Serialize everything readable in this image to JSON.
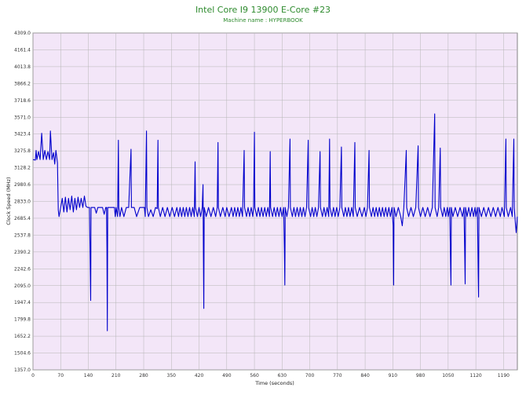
{
  "chart_data": {
    "type": "line",
    "title": "Intel Core I9 13900 E-Core #23",
    "subtitle": "Machine name : HYPERBOOK",
    "xlabel": "Time (seconds)",
    "ylabel": "Clock Speed (MHz)",
    "xlim": [
      0,
      1225
    ],
    "ylim": [
      1357.0,
      4309.0
    ],
    "xticks": [
      0,
      70,
      140,
      210,
      280,
      350,
      420,
      490,
      560,
      630,
      700,
      770,
      840,
      910,
      980,
      1050,
      1120,
      1190
    ],
    "yticks": [
      1357.0,
      1504.6,
      1652.2,
      1799.8,
      1947.4,
      2095.0,
      2242.6,
      2390.2,
      2537.8,
      2685.4,
      2833.0,
      2980.6,
      3128.2,
      3275.8,
      3423.4,
      3571.0,
      3718.6,
      3866.2,
      4013.8,
      4161.4,
      4309.0
    ],
    "ytick_labels": [
      "1357.0",
      "1504.6",
      "1652.2",
      "1799.8",
      "1947.4",
      "2095.0",
      "2242.6",
      "2390.2",
      "2537.8",
      "2685.4",
      "2833.0",
      "2980.6",
      "3128.2",
      "3275.8",
      "3423.4",
      "3571.0",
      "3718.6",
      "3866.2",
      "4013.8",
      "4161.4",
      "4309.0"
    ],
    "grid": true,
    "colors": {
      "line": "#0000cc",
      "plot_bg": "#f3e6f8",
      "grid": "#b5b5b5",
      "title": "#2e8b2e"
    },
    "series": [
      {
        "values": [
          [
            0,
            3200
          ],
          [
            6,
            3195
          ],
          [
            8,
            3280
          ],
          [
            10,
            3200
          ],
          [
            14,
            3270
          ],
          [
            18,
            3200
          ],
          [
            22,
            3430
          ],
          [
            26,
            3200
          ],
          [
            30,
            3280
          ],
          [
            34,
            3200
          ],
          [
            38,
            3270
          ],
          [
            42,
            3200
          ],
          [
            44,
            3450
          ],
          [
            48,
            3200
          ],
          [
            52,
            3260
          ],
          [
            55,
            3160
          ],
          [
            58,
            3280
          ],
          [
            62,
            3170
          ],
          [
            64,
            2760
          ],
          [
            66,
            2700
          ],
          [
            70,
            2780
          ],
          [
            74,
            2860
          ],
          [
            78,
            2740
          ],
          [
            82,
            2870
          ],
          [
            86,
            2740
          ],
          [
            90,
            2860
          ],
          [
            94,
            2760
          ],
          [
            98,
            2880
          ],
          [
            102,
            2740
          ],
          [
            106,
            2860
          ],
          [
            110,
            2760
          ],
          [
            114,
            2870
          ],
          [
            118,
            2780
          ],
          [
            122,
            2860
          ],
          [
            126,
            2780
          ],
          [
            130,
            2880
          ],
          [
            134,
            2790
          ],
          [
            138,
            2780
          ],
          [
            140,
            2780
          ],
          [
            143,
            2780
          ],
          [
            145,
            2230
          ],
          [
            146,
            1965
          ],
          [
            147,
            2780
          ],
          [
            152,
            2780
          ],
          [
            156,
            2780
          ],
          [
            160,
            2730
          ],
          [
            164,
            2780
          ],
          [
            170,
            2780
          ],
          [
            176,
            2780
          ],
          [
            180,
            2720
          ],
          [
            184,
            2780
          ],
          [
            186,
            2780
          ],
          [
            187,
            2420
          ],
          [
            188,
            1700
          ],
          [
            189,
            2780
          ],
          [
            196,
            2780
          ],
          [
            206,
            2780
          ],
          [
            208,
            2700
          ],
          [
            210,
            2780
          ],
          [
            214,
            2700
          ],
          [
            216,
            3370
          ],
          [
            217,
            2780
          ],
          [
            220,
            2700
          ],
          [
            224,
            2780
          ],
          [
            230,
            2700
          ],
          [
            236,
            2780
          ],
          [
            242,
            2780
          ],
          [
            248,
            3290
          ],
          [
            249,
            2780
          ],
          [
            256,
            2780
          ],
          [
            262,
            2700
          ],
          [
            270,
            2780
          ],
          [
            276,
            2780
          ],
          [
            282,
            2780
          ],
          [
            284,
            2700
          ],
          [
            287,
            3450
          ],
          [
            288,
            2780
          ],
          [
            292,
            2700
          ],
          [
            298,
            2760
          ],
          [
            304,
            2700
          ],
          [
            310,
            2780
          ],
          [
            314,
            2770
          ],
          [
            316,
            3370
          ],
          [
            317,
            2780
          ],
          [
            322,
            2700
          ],
          [
            328,
            2780
          ],
          [
            334,
            2700
          ],
          [
            340,
            2780
          ],
          [
            346,
            2700
          ],
          [
            352,
            2780
          ],
          [
            358,
            2700
          ],
          [
            364,
            2780
          ],
          [
            368,
            2700
          ],
          [
            372,
            2780
          ],
          [
            376,
            2700
          ],
          [
            380,
            2780
          ],
          [
            384,
            2700
          ],
          [
            388,
            2780
          ],
          [
            392,
            2700
          ],
          [
            396,
            2780
          ],
          [
            400,
            2700
          ],
          [
            404,
            2780
          ],
          [
            408,
            2700
          ],
          [
            410,
            3180
          ],
          [
            411,
            2780
          ],
          [
            416,
            2700
          ],
          [
            420,
            2780
          ],
          [
            424,
            2700
          ],
          [
            428,
            2780
          ],
          [
            430,
            2980
          ],
          [
            431,
            2360
          ],
          [
            432,
            1895
          ],
          [
            433,
            2780
          ],
          [
            438,
            2700
          ],
          [
            444,
            2780
          ],
          [
            450,
            2700
          ],
          [
            456,
            2780
          ],
          [
            462,
            2700
          ],
          [
            466,
            2780
          ],
          [
            468,
            3350
          ],
          [
            469,
            2780
          ],
          [
            474,
            2700
          ],
          [
            480,
            2780
          ],
          [
            486,
            2700
          ],
          [
            490,
            2780
          ],
          [
            496,
            2700
          ],
          [
            502,
            2780
          ],
          [
            506,
            2700
          ],
          [
            510,
            2780
          ],
          [
            514,
            2700
          ],
          [
            518,
            2780
          ],
          [
            522,
            2700
          ],
          [
            526,
            2780
          ],
          [
            530,
            2700
          ],
          [
            534,
            3280
          ],
          [
            535,
            2780
          ],
          [
            540,
            2700
          ],
          [
            544,
            2780
          ],
          [
            548,
            2700
          ],
          [
            552,
            2780
          ],
          [
            556,
            2700
          ],
          [
            558,
            2780
          ],
          [
            560,
            3440
          ],
          [
            561,
            2780
          ],
          [
            566,
            2700
          ],
          [
            570,
            2780
          ],
          [
            574,
            2700
          ],
          [
            578,
            2780
          ],
          [
            582,
            2700
          ],
          [
            586,
            2780
          ],
          [
            590,
            2700
          ],
          [
            594,
            2780
          ],
          [
            598,
            2700
          ],
          [
            600,
            3270
          ],
          [
            601,
            2780
          ],
          [
            606,
            2700
          ],
          [
            610,
            2780
          ],
          [
            614,
            2700
          ],
          [
            618,
            2780
          ],
          [
            622,
            2700
          ],
          [
            626,
            2780
          ],
          [
            630,
            2700
          ],
          [
            634,
            2780
          ],
          [
            636,
            2400
          ],
          [
            637,
            2100
          ],
          [
            638,
            2780
          ],
          [
            642,
            2700
          ],
          [
            646,
            2780
          ],
          [
            650,
            3380
          ],
          [
            651,
            2780
          ],
          [
            656,
            2700
          ],
          [
            660,
            2780
          ],
          [
            664,
            2700
          ],
          [
            668,
            2780
          ],
          [
            672,
            2700
          ],
          [
            676,
            2780
          ],
          [
            680,
            2700
          ],
          [
            684,
            2780
          ],
          [
            688,
            2700
          ],
          [
            692,
            2780
          ],
          [
            696,
            3370
          ],
          [
            697,
            2780
          ],
          [
            702,
            2700
          ],
          [
            706,
            2780
          ],
          [
            710,
            2700
          ],
          [
            714,
            2780
          ],
          [
            718,
            2700
          ],
          [
            722,
            2780
          ],
          [
            726,
            3270
          ],
          [
            727,
            2780
          ],
          [
            732,
            2700
          ],
          [
            736,
            2780
          ],
          [
            740,
            2700
          ],
          [
            744,
            2780
          ],
          [
            748,
            2700
          ],
          [
            750,
            3380
          ],
          [
            751,
            2780
          ],
          [
            756,
            2700
          ],
          [
            760,
            2780
          ],
          [
            764,
            2700
          ],
          [
            768,
            2780
          ],
          [
            772,
            2700
          ],
          [
            776,
            2780
          ],
          [
            780,
            3310
          ],
          [
            781,
            2780
          ],
          [
            786,
            2700
          ],
          [
            790,
            2780
          ],
          [
            794,
            2700
          ],
          [
            798,
            2780
          ],
          [
            802,
            2700
          ],
          [
            806,
            2780
          ],
          [
            810,
            2700
          ],
          [
            814,
            3350
          ],
          [
            815,
            2780
          ],
          [
            820,
            2700
          ],
          [
            826,
            2780
          ],
          [
            832,
            2700
          ],
          [
            838,
            2780
          ],
          [
            842,
            2700
          ],
          [
            846,
            2780
          ],
          [
            850,
            3280
          ],
          [
            851,
            2780
          ],
          [
            856,
            2700
          ],
          [
            860,
            2780
          ],
          [
            864,
            2700
          ],
          [
            868,
            2780
          ],
          [
            872,
            2700
          ],
          [
            876,
            2780
          ],
          [
            880,
            2700
          ],
          [
            884,
            2780
          ],
          [
            888,
            2700
          ],
          [
            892,
            2780
          ],
          [
            896,
            2700
          ],
          [
            900,
            2780
          ],
          [
            904,
            2700
          ],
          [
            908,
            2780
          ],
          [
            911,
            2620
          ],
          [
            912,
            2100
          ],
          [
            913,
            2780
          ],
          [
            918,
            2700
          ],
          [
            924,
            2780
          ],
          [
            930,
            2700
          ],
          [
            934,
            2620
          ],
          [
            938,
            2780
          ],
          [
            944,
            3280
          ],
          [
            945,
            2780
          ],
          [
            950,
            2700
          ],
          [
            956,
            2780
          ],
          [
            962,
            2700
          ],
          [
            968,
            2780
          ],
          [
            974,
            3320
          ],
          [
            975,
            2780
          ],
          [
            980,
            2700
          ],
          [
            986,
            2780
          ],
          [
            992,
            2700
          ],
          [
            998,
            2780
          ],
          [
            1004,
            2700
          ],
          [
            1010,
            2780
          ],
          [
            1016,
            3600
          ],
          [
            1017,
            2780
          ],
          [
            1022,
            2700
          ],
          [
            1026,
            2780
          ],
          [
            1030,
            3300
          ],
          [
            1031,
            2780
          ],
          [
            1036,
            2700
          ],
          [
            1040,
            2780
          ],
          [
            1044,
            2700
          ],
          [
            1048,
            2780
          ],
          [
            1050,
            2700
          ],
          [
            1054,
            2780
          ],
          [
            1056,
            2300
          ],
          [
            1057,
            2100
          ],
          [
            1058,
            2780
          ],
          [
            1062,
            2700
          ],
          [
            1068,
            2780
          ],
          [
            1074,
            2700
          ],
          [
            1080,
            2780
          ],
          [
            1086,
            2700
          ],
          [
            1090,
            2780
          ],
          [
            1092,
            2350
          ],
          [
            1093,
            2110
          ],
          [
            1094,
            2780
          ],
          [
            1098,
            2700
          ],
          [
            1102,
            2780
          ],
          [
            1106,
            2700
          ],
          [
            1110,
            2780
          ],
          [
            1114,
            2700
          ],
          [
            1118,
            2780
          ],
          [
            1120,
            2700
          ],
          [
            1124,
            2780
          ],
          [
            1126,
            2200
          ],
          [
            1127,
            1995
          ],
          [
            1128,
            2780
          ],
          [
            1134,
            2700
          ],
          [
            1140,
            2780
          ],
          [
            1146,
            2700
          ],
          [
            1152,
            2780
          ],
          [
            1158,
            2700
          ],
          [
            1164,
            2780
          ],
          [
            1170,
            2700
          ],
          [
            1176,
            2780
          ],
          [
            1182,
            2700
          ],
          [
            1186,
            2780
          ],
          [
            1192,
            2700
          ],
          [
            1196,
            3380
          ],
          [
            1197,
            2780
          ],
          [
            1202,
            2700
          ],
          [
            1208,
            2780
          ],
          [
            1212,
            2700
          ],
          [
            1216,
            3380
          ],
          [
            1217,
            2780
          ],
          [
            1220,
            2640
          ],
          [
            1222,
            2560
          ],
          [
            1225,
            2700
          ]
        ]
      }
    ]
  }
}
